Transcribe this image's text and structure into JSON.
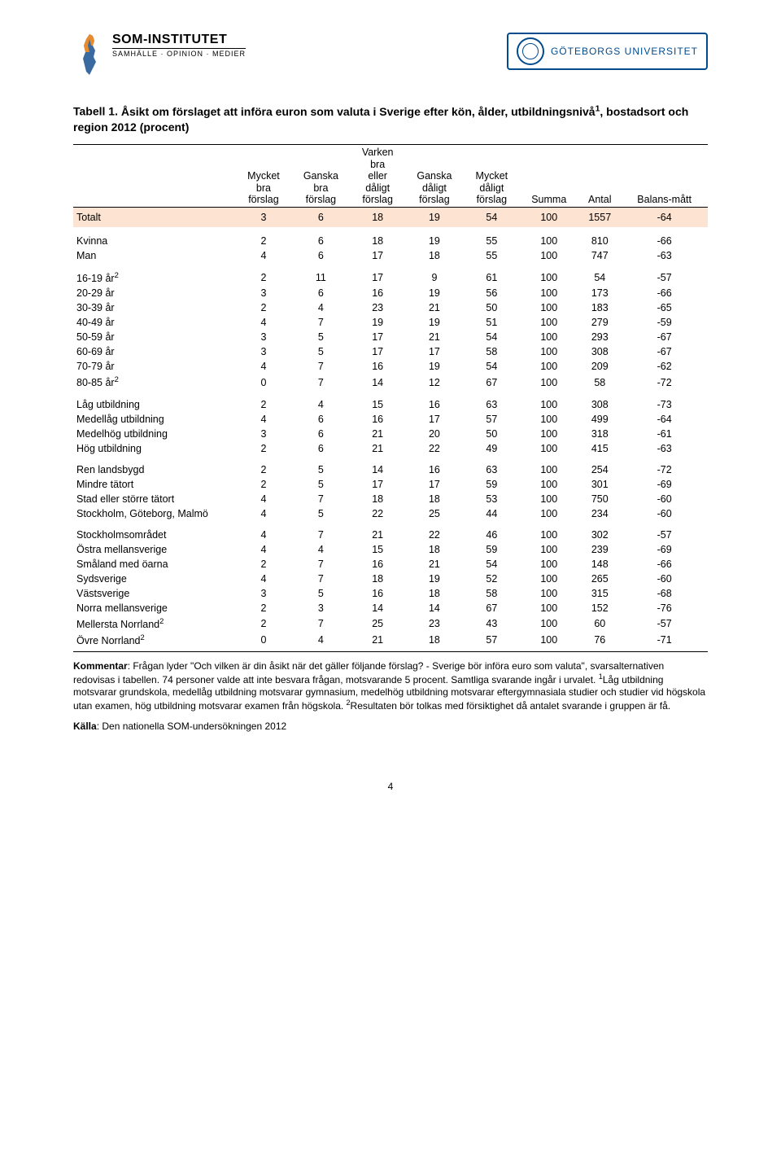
{
  "header": {
    "som_title": "SOM-INSTITUTET",
    "som_sub": "SAMHÄLLE · OPINION · MEDIER",
    "gu_name": "GÖTEBORGS UNIVERSITET"
  },
  "caption_label": "Tabell 1.",
  "caption_text": "Åsikt om förslaget att införa euron som valuta i Sverige efter kön, ålder, utbildningsnivå",
  "caption_sup": "1",
  "caption_tail": ", bostadsort och region 2012 (procent)",
  "columns": [
    "",
    "Mycket bra förslag",
    "Ganska bra förslag",
    "Varken bra eller dåligt förslag",
    "Ganska dåligt förslag",
    "Mycket dåligt förslag",
    "Summa",
    "Antal",
    "Balans-mått"
  ],
  "totalt": {
    "label": "Totalt",
    "cells": [
      "3",
      "6",
      "18",
      "19",
      "54",
      "100",
      "1557",
      "-64"
    ]
  },
  "groups": [
    [
      {
        "label": "Kvinna",
        "cells": [
          "2",
          "6",
          "18",
          "19",
          "55",
          "100",
          "810",
          "-66"
        ]
      },
      {
        "label": "Man",
        "cells": [
          "4",
          "6",
          "17",
          "18",
          "55",
          "100",
          "747",
          "-63"
        ]
      }
    ],
    [
      {
        "label": "16-19 år",
        "sup": "2",
        "cells": [
          "2",
          "11",
          "17",
          "9",
          "61",
          "100",
          "54",
          "-57"
        ]
      },
      {
        "label": "20-29 år",
        "cells": [
          "3",
          "6",
          "16",
          "19",
          "56",
          "100",
          "173",
          "-66"
        ]
      },
      {
        "label": "30-39 år",
        "cells": [
          "2",
          "4",
          "23",
          "21",
          "50",
          "100",
          "183",
          "-65"
        ]
      },
      {
        "label": "40-49 år",
        "cells": [
          "4",
          "7",
          "19",
          "19",
          "51",
          "100",
          "279",
          "-59"
        ]
      },
      {
        "label": "50-59 år",
        "cells": [
          "3",
          "5",
          "17",
          "21",
          "54",
          "100",
          "293",
          "-67"
        ]
      },
      {
        "label": "60-69 år",
        "cells": [
          "3",
          "5",
          "17",
          "17",
          "58",
          "100",
          "308",
          "-67"
        ]
      },
      {
        "label": "70-79 år",
        "cells": [
          "4",
          "7",
          "16",
          "19",
          "54",
          "100",
          "209",
          "-62"
        ]
      },
      {
        "label": "80-85 år",
        "sup": "2",
        "cells": [
          "0",
          "7",
          "14",
          "12",
          "67",
          "100",
          "58",
          "-72"
        ]
      }
    ],
    [
      {
        "label": "Låg utbildning",
        "cells": [
          "2",
          "4",
          "15",
          "16",
          "63",
          "100",
          "308",
          "-73"
        ]
      },
      {
        "label": "Medellåg utbildning",
        "cells": [
          "4",
          "6",
          "16",
          "17",
          "57",
          "100",
          "499",
          "-64"
        ]
      },
      {
        "label": "Medelhög utbildning",
        "cells": [
          "3",
          "6",
          "21",
          "20",
          "50",
          "100",
          "318",
          "-61"
        ]
      },
      {
        "label": "Hög utbildning",
        "cells": [
          "2",
          "6",
          "21",
          "22",
          "49",
          "100",
          "415",
          "-63"
        ]
      }
    ],
    [
      {
        "label": "Ren landsbygd",
        "cells": [
          "2",
          "5",
          "14",
          "16",
          "63",
          "100",
          "254",
          "-72"
        ]
      },
      {
        "label": "Mindre tätort",
        "cells": [
          "2",
          "5",
          "17",
          "17",
          "59",
          "100",
          "301",
          "-69"
        ]
      },
      {
        "label": "Stad eller större tätort",
        "cells": [
          "4",
          "7",
          "18",
          "18",
          "53",
          "100",
          "750",
          "-60"
        ]
      },
      {
        "label": "Stockholm, Göteborg, Malmö",
        "cells": [
          "4",
          "5",
          "22",
          "25",
          "44",
          "100",
          "234",
          "-60"
        ]
      }
    ],
    [
      {
        "label": "Stockholmsområdet",
        "cells": [
          "4",
          "7",
          "21",
          "22",
          "46",
          "100",
          "302",
          "-57"
        ]
      },
      {
        "label": "Östra mellansverige",
        "cells": [
          "4",
          "4",
          "15",
          "18",
          "59",
          "100",
          "239",
          "-69"
        ]
      },
      {
        "label": "Småland med öarna",
        "cells": [
          "2",
          "7",
          "16",
          "21",
          "54",
          "100",
          "148",
          "-66"
        ]
      },
      {
        "label": "Sydsverige",
        "cells": [
          "4",
          "7",
          "18",
          "19",
          "52",
          "100",
          "265",
          "-60"
        ]
      },
      {
        "label": "Västsverige",
        "cells": [
          "3",
          "5",
          "16",
          "18",
          "58",
          "100",
          "315",
          "-68"
        ]
      },
      {
        "label": "Norra mellansverige",
        "cells": [
          "2",
          "3",
          "14",
          "14",
          "67",
          "100",
          "152",
          "-76"
        ]
      },
      {
        "label": "Mellersta Norrland",
        "sup": "2",
        "cells": [
          "2",
          "7",
          "25",
          "23",
          "43",
          "100",
          "60",
          "-57"
        ]
      },
      {
        "label": "Övre Norrland",
        "sup": "2",
        "cells": [
          "0",
          "4",
          "21",
          "18",
          "57",
          "100",
          "76",
          "-71"
        ]
      }
    ]
  ],
  "kommentar_label": "Kommentar",
  "kommentar_text": ": Frågan lyder \"Och vilken är din åsikt när det gäller följande förslag? - Sverige bör införa euro som valuta\", svarsalternativen redovisas i tabellen. 74 personer valde att inte besvara frågan, motsvarande 5 procent. Samtliga svarande ingår i urvalet. ",
  "kommentar_sup1": "1",
  "kommentar_after1": "Låg utbildning motsvarar grundskola, medellåg utbildning motsvarar gymnasium, medelhög utbildning motsvarar eftergymnasiala studier och studier vid högskola utan examen, hög utbildning motsvarar examen från högskola. ",
  "kommentar_sup2": "2",
  "kommentar_after2": "Resultaten bör tolkas med försiktighet då antalet svarande i gruppen är få.",
  "kalla_label": "Källa",
  "kalla_text": ": Den nationella SOM-undersökningen 2012",
  "page_number": "4",
  "colors": {
    "totalt_bg": "#fde4d2",
    "gu_blue": "#004b8d",
    "map_orange": "#e98b2c",
    "map_blue": "#3a6aa0"
  }
}
